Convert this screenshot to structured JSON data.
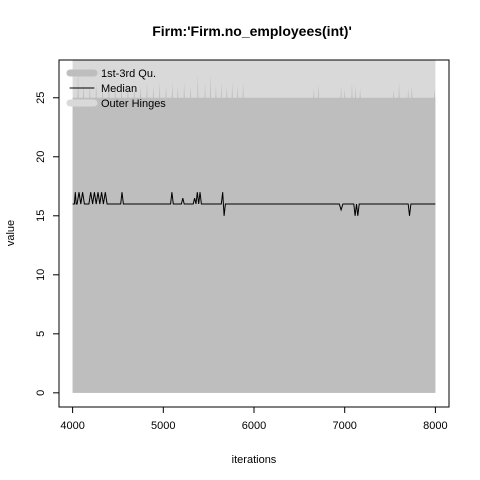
{
  "chart_data": {
    "type": "area",
    "title": "Firm:'Firm.no_employees(int)'",
    "xlabel": "iterations",
    "ylabel": "value",
    "xlim": [
      3850,
      8150
    ],
    "ylim": [
      -1.2,
      28.2
    ],
    "x_ticks": [
      4000,
      5000,
      6000,
      7000,
      8000
    ],
    "y_ticks": [
      0,
      5,
      10,
      15,
      20,
      25
    ],
    "legend_position": "top-left",
    "colors": {
      "outer_hinges": "#d9d9d9",
      "iqr": "#bebebe",
      "median": "#000000"
    },
    "series": [
      {
        "name": "Outer Hinges",
        "band": {
          "x": [
            4000,
            8000
          ],
          "low": 0,
          "high": 28.2
        }
      },
      {
        "name": "1st-3rd Qu.",
        "band_low": 0,
        "band_high_base": 25,
        "band_high_spikes": [
          [
            4060,
            27.5
          ],
          [
            4120,
            26.3
          ],
          [
            4190,
            26.0
          ],
          [
            4260,
            26.3
          ],
          [
            4330,
            26.0
          ],
          [
            4400,
            26.3
          ],
          [
            4470,
            26.0
          ],
          [
            4540,
            26.3
          ],
          [
            4610,
            26.0
          ],
          [
            4680,
            26.3
          ],
          [
            4750,
            26.0
          ],
          [
            4820,
            26.3
          ],
          [
            4890,
            26.0
          ],
          [
            4960,
            26.3
          ],
          [
            5030,
            26.0
          ],
          [
            5100,
            26.3
          ],
          [
            5160,
            26.0
          ],
          [
            5230,
            26.3
          ],
          [
            5300,
            26.0
          ],
          [
            5380,
            27.0
          ],
          [
            5460,
            26.3
          ],
          [
            5520,
            27.0
          ],
          [
            5580,
            26.0
          ],
          [
            5640,
            26.3
          ],
          [
            5700,
            26.0
          ],
          [
            5760,
            26.3
          ],
          [
            5820,
            26.0
          ],
          [
            5880,
            26.3
          ],
          [
            6660,
            25.8
          ],
          [
            6710,
            26.2
          ],
          [
            6960,
            26.0
          ],
          [
            7000,
            25.8
          ],
          [
            7080,
            26.3
          ],
          [
            7120,
            26.0
          ],
          [
            7170,
            25.8
          ],
          [
            7540,
            25.7
          ],
          [
            7600,
            26.3
          ],
          [
            7700,
            25.8
          ],
          [
            7740,
            26.0
          ],
          [
            7990,
            25.7
          ]
        ]
      },
      {
        "name": "Median",
        "x": [
          4000,
          4020,
          4030,
          4040,
          4050,
          4070,
          4090,
          4110,
          4130,
          4150,
          4180,
          4200,
          4220,
          4240,
          4260,
          4280,
          4300,
          4320,
          4340,
          4360,
          4380,
          4400,
          4530,
          4545,
          4560,
          4575,
          5080,
          5095,
          5110,
          5125,
          5200,
          5215,
          5230,
          5330,
          5345,
          5360,
          5375,
          5390,
          5405,
          5420,
          5435,
          5640,
          5655,
          5670,
          5685,
          5700,
          6940,
          6960,
          6980,
          7100,
          7115,
          7130,
          7145,
          7160,
          7175,
          7700,
          7715,
          7730,
          7745,
          8000
        ],
        "values": [
          16,
          16,
          17,
          16,
          16,
          17,
          16,
          17,
          16,
          16,
          16,
          17,
          16,
          17,
          16,
          17,
          16,
          17,
          16,
          17,
          16,
          16,
          16,
          17,
          16,
          16,
          16,
          17,
          16,
          16,
          16,
          16.5,
          16,
          16,
          16.5,
          16,
          17,
          16,
          17,
          16,
          16,
          16,
          17,
          15,
          16,
          16,
          16,
          15.5,
          16,
          16,
          15,
          16,
          15,
          16,
          16,
          16,
          15,
          16,
          16,
          16
        ]
      }
    ]
  }
}
